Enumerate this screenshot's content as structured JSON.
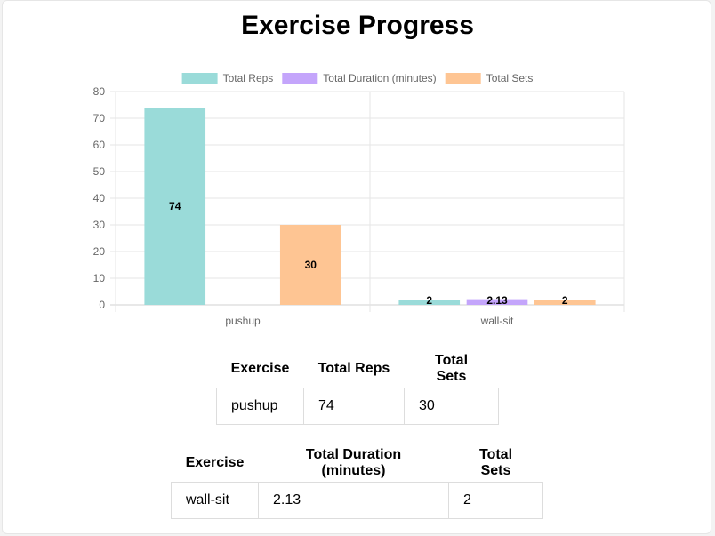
{
  "page": {
    "title": "Exercise Progress"
  },
  "chart_data": {
    "type": "bar",
    "categories": [
      "pushup",
      "wall-sit"
    ],
    "series": [
      {
        "name": "Total Reps",
        "values": [
          74,
          2
        ],
        "color": "#9adbd9"
      },
      {
        "name": "Total Duration (minutes)",
        "values": [
          0,
          2.13
        ],
        "color": "#c4a5fb"
      },
      {
        "name": "Total Sets",
        "values": [
          30,
          2
        ],
        "color": "#fec593"
      }
    ],
    "data_labels": [
      [
        "74",
        "2"
      ],
      [
        "",
        "2.13"
      ],
      [
        "30",
        "2"
      ]
    ],
    "ylim": [
      0,
      80
    ],
    "yticks": [
      "0",
      "10",
      "20",
      "30",
      "40",
      "50",
      "60",
      "70",
      "80"
    ],
    "ytick_values": [
      0,
      10,
      20,
      30,
      40,
      50,
      60,
      70,
      80
    ],
    "legend_position": "top",
    "grid": true
  },
  "tables": [
    {
      "headers": [
        "Exercise",
        "Total Reps",
        "Total Sets"
      ],
      "rows": [
        [
          "pushup",
          "74",
          "30"
        ]
      ]
    },
    {
      "headers": [
        "Exercise",
        "Total Duration (minutes)",
        "Total Sets"
      ],
      "rows": [
        [
          "wall-sit",
          "2.13",
          "2"
        ]
      ]
    }
  ]
}
